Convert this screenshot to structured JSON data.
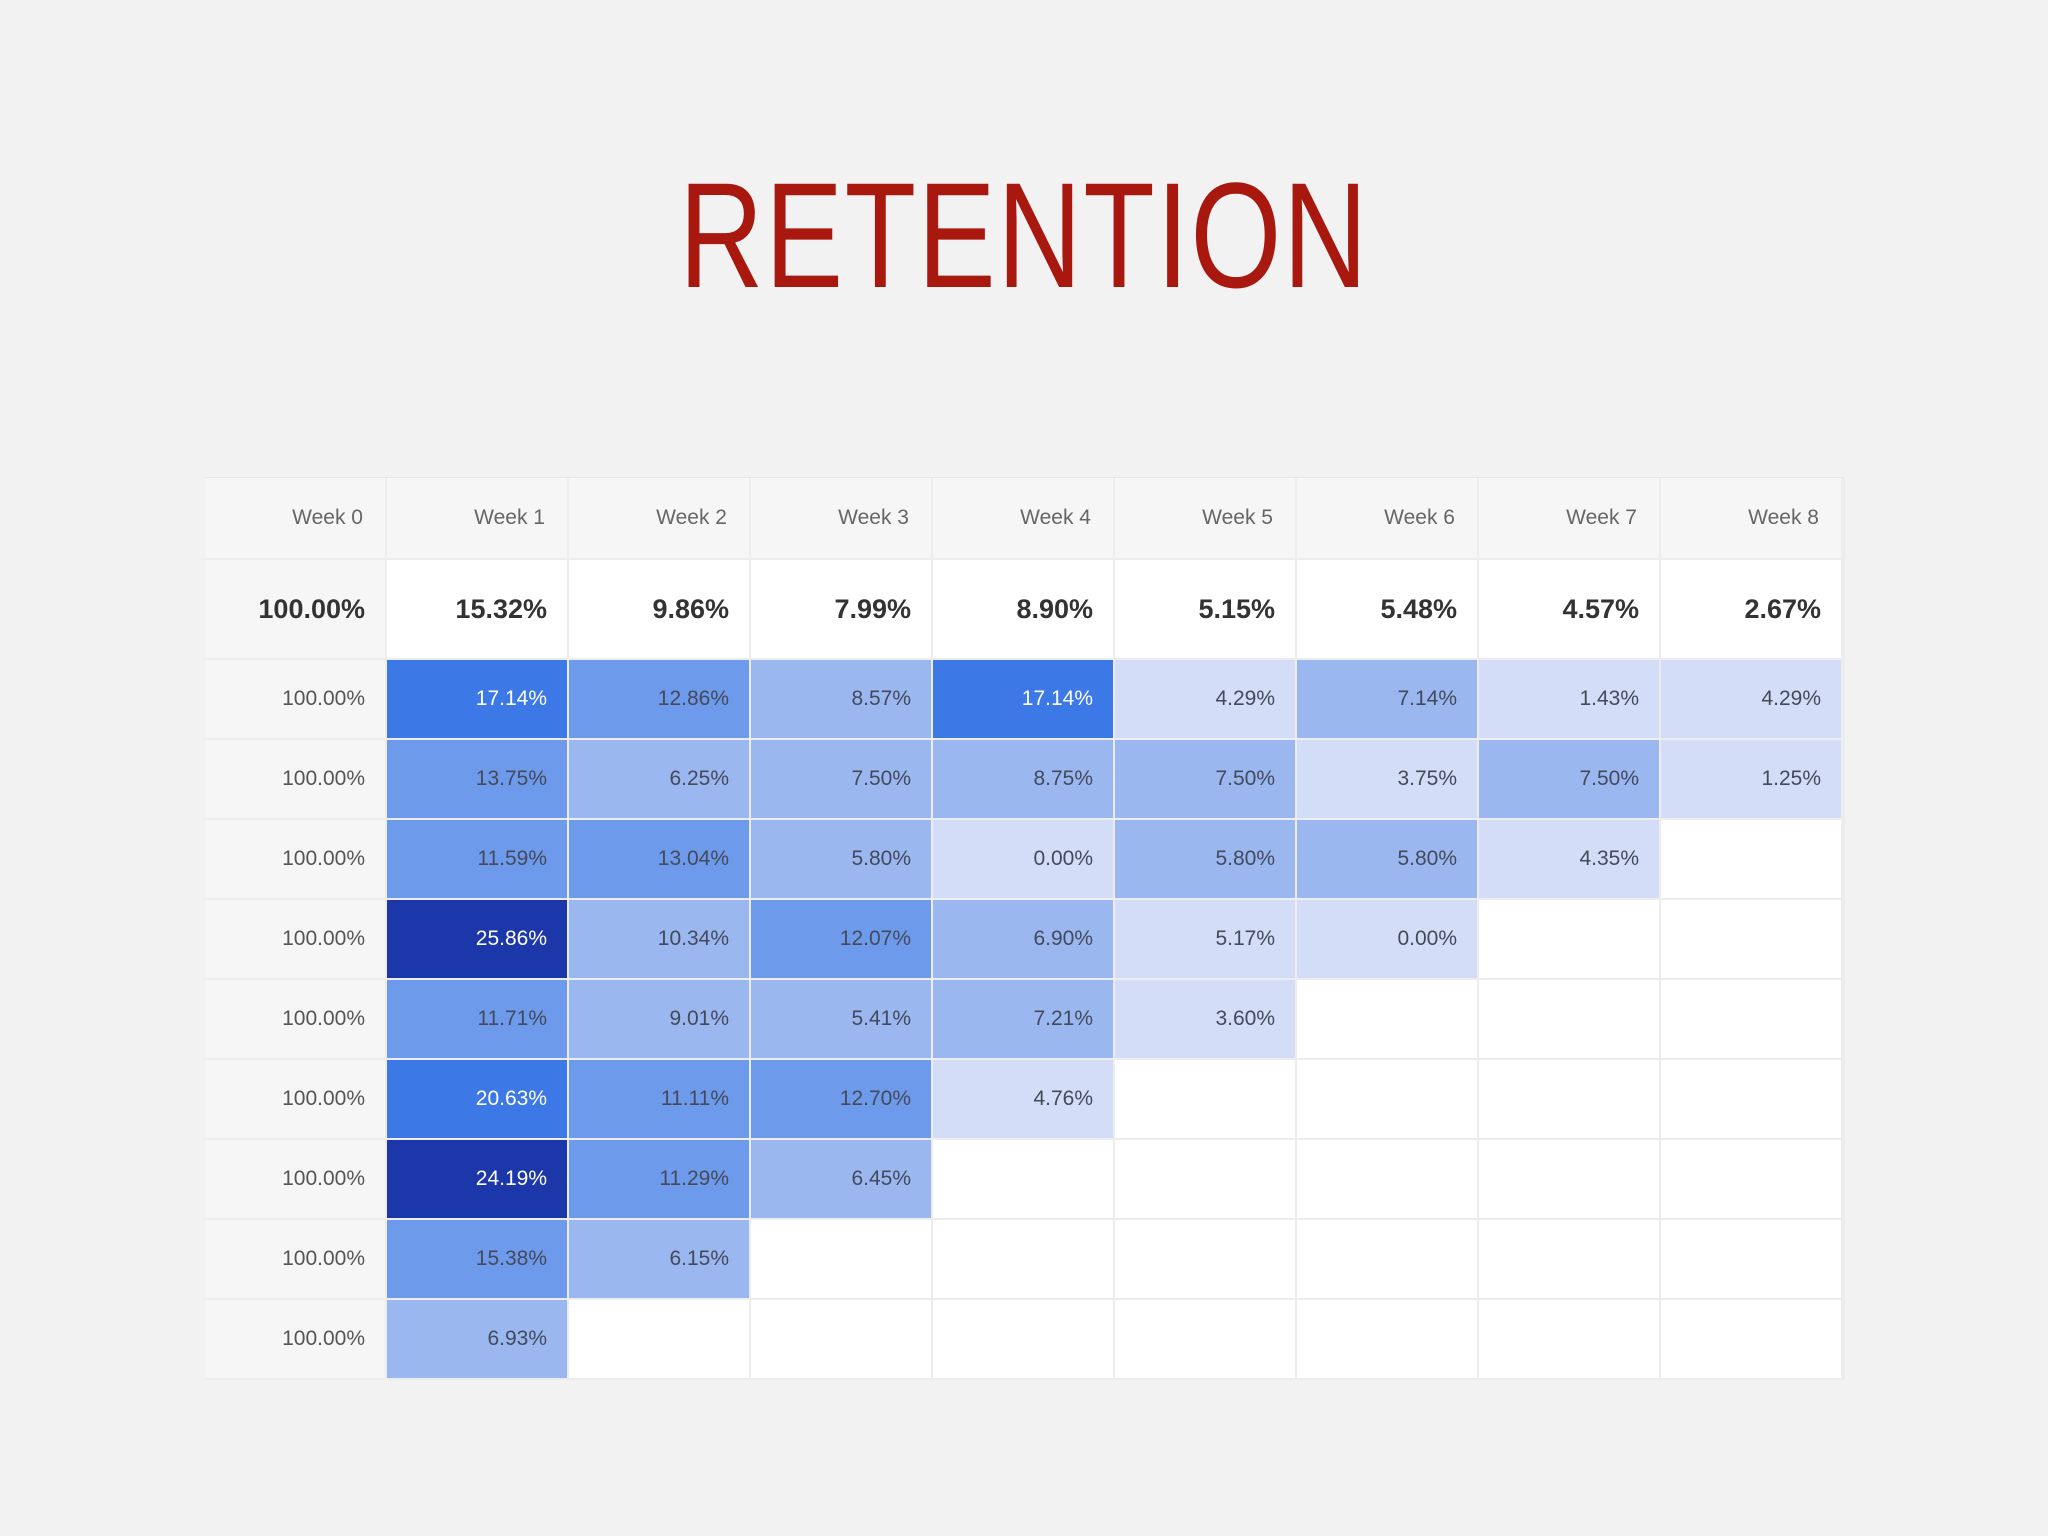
{
  "slide": {
    "title": "RETENTION"
  },
  "colors": {
    "title": "#a8180f",
    "scale": [
      "#d3ddf8",
      "#9ab7f0",
      "#6d9aeb",
      "#3c78e6",
      "#1c37a9"
    ]
  },
  "chart_data": {
    "type": "heatmap",
    "columns": [
      "Week 0",
      "Week 1",
      "Week 2",
      "Week 3",
      "Week 4",
      "Week 5",
      "Week 6",
      "Week 7",
      "Week 8"
    ],
    "summary": [
      "100.00%",
      "15.32%",
      "9.86%",
      "7.99%",
      "8.90%",
      "5.15%",
      "5.48%",
      "4.57%",
      "2.67%"
    ],
    "rows": [
      [
        "100.00%",
        "17.14%",
        "12.86%",
        "8.57%",
        "17.14%",
        "4.29%",
        "7.14%",
        "1.43%",
        "4.29%"
      ],
      [
        "100.00%",
        "13.75%",
        "6.25%",
        "7.50%",
        "8.75%",
        "7.50%",
        "3.75%",
        "7.50%",
        "1.25%"
      ],
      [
        "100.00%",
        "11.59%",
        "13.04%",
        "5.80%",
        "0.00%",
        "5.80%",
        "5.80%",
        "4.35%"
      ],
      [
        "100.00%",
        "25.86%",
        "10.34%",
        "12.07%",
        "6.90%",
        "5.17%",
        "0.00%"
      ],
      [
        "100.00%",
        "11.71%",
        "9.01%",
        "5.41%",
        "7.21%",
        "3.60%"
      ],
      [
        "100.00%",
        "20.63%",
        "11.11%",
        "12.70%",
        "4.76%"
      ],
      [
        "100.00%",
        "24.19%",
        "11.29%",
        "6.45%"
      ],
      [
        "100.00%",
        "15.38%",
        "6.15%"
      ],
      [
        "100.00%",
        "6.93%"
      ]
    ],
    "levels": [
      [
        null,
        3,
        2,
        1,
        3,
        0,
        1,
        0,
        0
      ],
      [
        null,
        2,
        1,
        1,
        1,
        1,
        0,
        1,
        0
      ],
      [
        null,
        2,
        2,
        1,
        0,
        1,
        1,
        0
      ],
      [
        null,
        4,
        1,
        2,
        1,
        0,
        0
      ],
      [
        null,
        2,
        1,
        1,
        1,
        0
      ],
      [
        null,
        3,
        2,
        2,
        0
      ],
      [
        null,
        4,
        2,
        1
      ],
      [
        null,
        2,
        1
      ],
      [
        null,
        1
      ]
    ]
  }
}
